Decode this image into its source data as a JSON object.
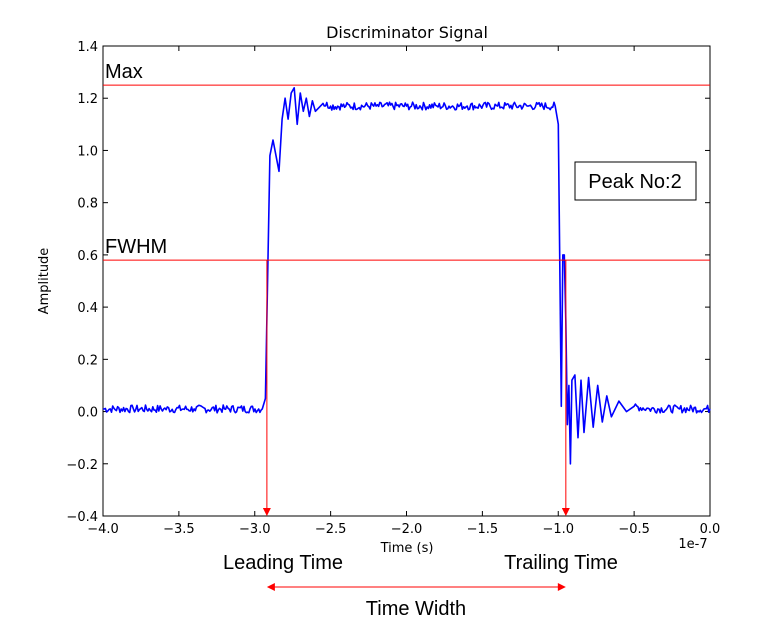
{
  "chart_data": {
    "type": "line",
    "title": "Discriminator Signal",
    "xlabel": "Time (s)",
    "ylabel": "Amplitude",
    "x_offset_label": "1e-7",
    "xlim": [
      -4.0,
      0.0
    ],
    "ylim": [
      -0.4,
      1.4
    ],
    "x_ticks": [
      -4.0,
      -3.5,
      -3.0,
      -2.5,
      -2.0,
      -1.5,
      -1.0,
      -0.5,
      0.0
    ],
    "x_tick_labels": [
      "−4.0",
      "−3.5",
      "−3.0",
      "−2.5",
      "−2.0",
      "−1.5",
      "−1.0",
      "−0.5",
      "0.0"
    ],
    "y_ticks": [
      -0.4,
      -0.2,
      0.0,
      0.2,
      0.4,
      0.6,
      0.8,
      1.0,
      1.2,
      1.4
    ],
    "y_tick_labels": [
      "−0.4",
      "−0.2",
      "0.0",
      "0.2",
      "0.4",
      "0.6",
      "0.8",
      "1.0",
      "1.2",
      "1.4"
    ],
    "grid": false,
    "series": [
      {
        "color": "#0000ff",
        "points": [
          [
            -4.0,
            0.01
          ],
          [
            -3.8,
            0.01
          ],
          [
            -3.6,
            0.01
          ],
          [
            -3.4,
            0.01
          ],
          [
            -3.2,
            0.01
          ],
          [
            -2.95,
            0.01
          ],
          [
            -2.93,
            0.05
          ],
          [
            -2.9,
            0.98
          ],
          [
            -2.88,
            1.04
          ],
          [
            -2.86,
            0.98
          ],
          [
            -2.84,
            0.92
          ],
          [
            -2.82,
            1.12
          ],
          [
            -2.8,
            1.2
          ],
          [
            -2.78,
            1.12
          ],
          [
            -2.76,
            1.22
          ],
          [
            -2.74,
            1.24
          ],
          [
            -2.72,
            1.1
          ],
          [
            -2.7,
            1.22
          ],
          [
            -2.68,
            1.15
          ],
          [
            -2.66,
            1.2
          ],
          [
            -2.64,
            1.13
          ],
          [
            -2.62,
            1.19
          ],
          [
            -2.6,
            1.15
          ],
          [
            -2.55,
            1.18
          ],
          [
            -2.5,
            1.17
          ],
          [
            -2.4,
            1.17
          ],
          [
            -2.2,
            1.17
          ],
          [
            -2.0,
            1.17
          ],
          [
            -1.8,
            1.17
          ],
          [
            -1.6,
            1.17
          ],
          [
            -1.4,
            1.17
          ],
          [
            -1.2,
            1.17
          ],
          [
            -1.02,
            1.17
          ],
          [
            -1.0,
            1.1
          ],
          [
            -0.98,
            0.02
          ],
          [
            -0.97,
            0.6
          ],
          [
            -0.96,
            0.6
          ],
          [
            -0.95,
            0.35
          ],
          [
            -0.94,
            -0.05
          ],
          [
            -0.93,
            0.1
          ],
          [
            -0.92,
            -0.2
          ],
          [
            -0.91,
            0.12
          ],
          [
            -0.89,
            0.14
          ],
          [
            -0.87,
            -0.1
          ],
          [
            -0.85,
            0.12
          ],
          [
            -0.83,
            -0.08
          ],
          [
            -0.8,
            0.13
          ],
          [
            -0.77,
            -0.06
          ],
          [
            -0.74,
            0.1
          ],
          [
            -0.71,
            -0.04
          ],
          [
            -0.68,
            0.06
          ],
          [
            -0.65,
            -0.02
          ],
          [
            -0.6,
            0.04
          ],
          [
            -0.55,
            0.0
          ],
          [
            -0.5,
            0.02
          ],
          [
            -0.4,
            0.01
          ],
          [
            -0.2,
            0.01
          ],
          [
            0.0,
            0.01
          ]
        ]
      }
    ],
    "hlines": [
      {
        "y": 1.25,
        "color": "#ff0000",
        "label": "Max"
      },
      {
        "y": 0.58,
        "color": "#ff0000",
        "label": "FWHM"
      }
    ],
    "vlines": [
      {
        "x": -2.92,
        "y_from": 0.58,
        "y_to": -0.4,
        "color": "#ff0000"
      },
      {
        "x": -0.95,
        "y_from": 0.58,
        "y_to": -0.4,
        "color": "#ff0000"
      }
    ],
    "span_arrow": {
      "x_from": -2.92,
      "x_to": -0.95,
      "color": "#ff0000"
    },
    "annotations": {
      "leading": "Leading Time",
      "trailing": "Trailing Time",
      "width": "Time Width",
      "peak": "Peak No:2"
    }
  }
}
